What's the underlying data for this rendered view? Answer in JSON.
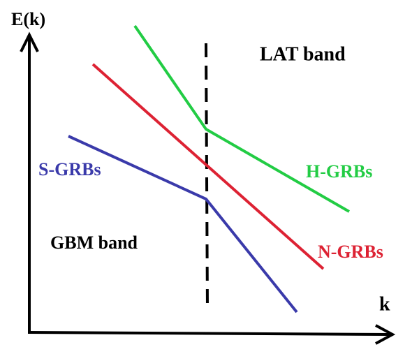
{
  "axes": {
    "y_label": "E(k)",
    "x_label": "k"
  },
  "regions": {
    "upper": "LAT band",
    "lower": "GBM band"
  },
  "curves": [
    {
      "label": "S-GRBs"
    },
    {
      "label": "N-GRBs"
    },
    {
      "label": "H-GRBs"
    }
  ]
}
